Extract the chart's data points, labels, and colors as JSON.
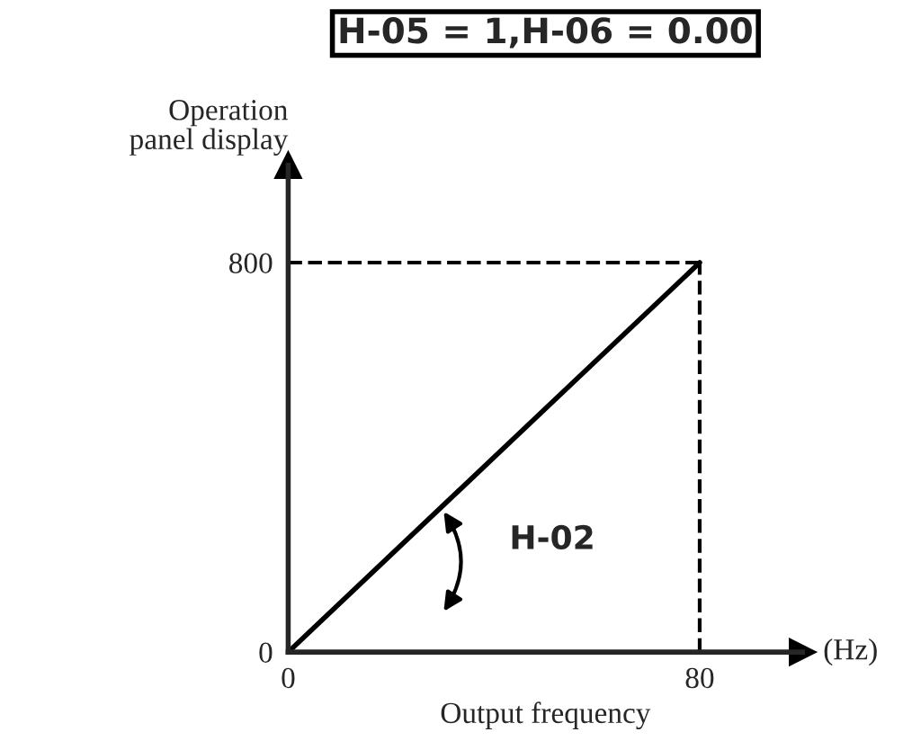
{
  "chart_data": {
    "type": "line",
    "title": "H-05 = 1,H-06 = 0.00",
    "xlabel": "Output frequency",
    "ylabel": "Operation\npanel display",
    "x": [
      0,
      80
    ],
    "series": [
      {
        "color": "#000000",
        "values": [
          0,
          800
        ]
      }
    ],
    "xlim": [
      0,
      100
    ],
    "ylim": [
      0,
      1000
    ],
    "xticks": [
      0,
      80
    ],
    "yticks": [
      0,
      800
    ],
    "ref_lines": [
      {
        "axis": "x",
        "value": 80,
        "color": "#000000",
        "line_style": "dashed"
      },
      {
        "axis": "y",
        "value": 800,
        "color": "#000000",
        "line_style": "dashed"
      }
    ],
    "annotations": [
      "H-02",
      "(Hz)"
    ],
    "grid": false,
    "marker": "none",
    "line_style": "solid"
  }
}
